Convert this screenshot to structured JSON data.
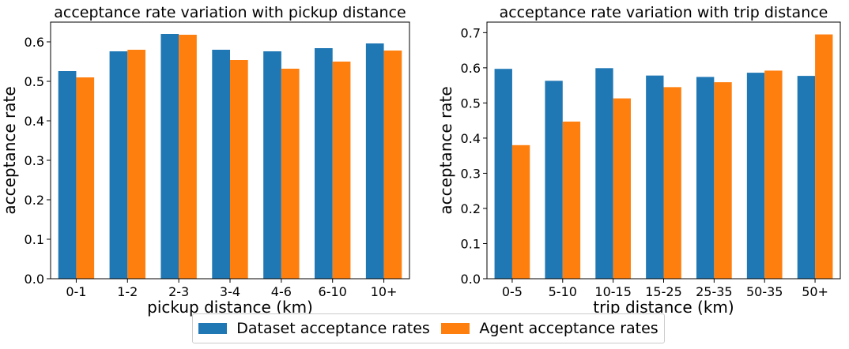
{
  "colors": {
    "dataset": "#1f77b4",
    "agent": "#ff7f0e"
  },
  "legend": {
    "dataset_label": "Dataset acceptance rates",
    "agent_label": "Agent acceptance rates",
    "placement": "bottom-center"
  },
  "chart_data": [
    {
      "type": "bar",
      "title": "acceptance rate variation with pickup distance",
      "xlabel": "pickup distance (km)",
      "ylabel": "acceptance rate",
      "categories": [
        "0-1",
        "1-2",
        "2-3",
        "3-4",
        "4-6",
        "6-10",
        "10+"
      ],
      "ylim": [
        0,
        0.65
      ],
      "yticks": [
        0.0,
        0.1,
        0.2,
        0.3,
        0.4,
        0.5,
        0.6
      ],
      "grid": false,
      "series": [
        {
          "name": "Dataset acceptance rates",
          "values": [
            0.526,
            0.576,
            0.62,
            0.58,
            0.576,
            0.584,
            0.596
          ]
        },
        {
          "name": "Agent acceptance rates",
          "values": [
            0.51,
            0.58,
            0.618,
            0.554,
            0.532,
            0.55,
            0.578
          ]
        }
      ]
    },
    {
      "type": "bar",
      "title": "acceptance rate variation with trip distance",
      "xlabel": "trip distance (km)",
      "ylabel": "acceptance rate",
      "categories": [
        "0-5",
        "5-10",
        "10-15",
        "15-25",
        "25-35",
        "50-35",
        "50+"
      ],
      "ylim": [
        0,
        0.73
      ],
      "yticks": [
        0.0,
        0.1,
        0.2,
        0.3,
        0.4,
        0.5,
        0.6,
        0.7
      ],
      "grid": false,
      "series": [
        {
          "name": "Dataset acceptance rates",
          "values": [
            0.597,
            0.563,
            0.599,
            0.578,
            0.574,
            0.586,
            0.577
          ]
        },
        {
          "name": "Agent acceptance rates",
          "values": [
            0.38,
            0.447,
            0.513,
            0.545,
            0.559,
            0.592,
            0.695
          ]
        }
      ]
    }
  ]
}
